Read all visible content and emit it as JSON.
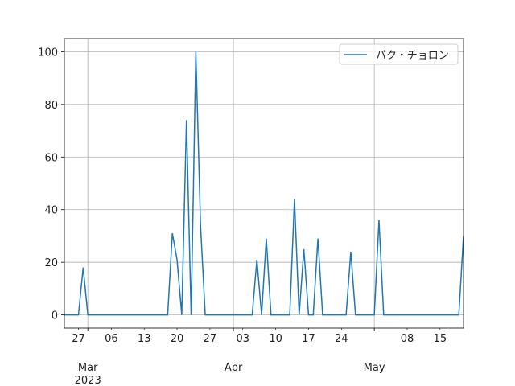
{
  "chart_data": {
    "type": "line",
    "legend": "upper right",
    "grid": true,
    "x": [
      "2023-02-24",
      "2023-02-25",
      "2023-02-26",
      "2023-02-27",
      "2023-02-28",
      "2023-03-01",
      "2023-03-02",
      "2023-03-03",
      "2023-03-04",
      "2023-03-05",
      "2023-03-06",
      "2023-03-07",
      "2023-03-08",
      "2023-03-09",
      "2023-03-10",
      "2023-03-11",
      "2023-03-12",
      "2023-03-13",
      "2023-03-14",
      "2023-03-15",
      "2023-03-16",
      "2023-03-17",
      "2023-03-18",
      "2023-03-19",
      "2023-03-20",
      "2023-03-21",
      "2023-03-22",
      "2023-03-23",
      "2023-03-24",
      "2023-03-25",
      "2023-03-26",
      "2023-03-27",
      "2023-03-28",
      "2023-03-29",
      "2023-03-30",
      "2023-03-31",
      "2023-04-01",
      "2023-04-02",
      "2023-04-03",
      "2023-04-04",
      "2023-04-05",
      "2023-04-06",
      "2023-04-07",
      "2023-04-08",
      "2023-04-09",
      "2023-04-10",
      "2023-04-11",
      "2023-04-12",
      "2023-04-13",
      "2023-04-14",
      "2023-04-15",
      "2023-04-16",
      "2023-04-17",
      "2023-04-18",
      "2023-04-19",
      "2023-04-20",
      "2023-04-21",
      "2023-04-22",
      "2023-04-23",
      "2023-04-24",
      "2023-04-25",
      "2023-04-26",
      "2023-04-27",
      "2023-04-28",
      "2023-04-29",
      "2023-04-30",
      "2023-05-01",
      "2023-05-02",
      "2023-05-03",
      "2023-05-04",
      "2023-05-05",
      "2023-05-06",
      "2023-05-07",
      "2023-05-08",
      "2023-05-09",
      "2023-05-10",
      "2023-05-11",
      "2023-05-12",
      "2023-05-13",
      "2023-05-14",
      "2023-05-15",
      "2023-05-16",
      "2023-05-17",
      "2023-05-18",
      "2023-05-19",
      "2023-05-20"
    ],
    "series": [
      {
        "name": "パク・チョロン",
        "color": "#1f77b4",
        "values": [
          0,
          0,
          0,
          0,
          18,
          0,
          0,
          0,
          0,
          0,
          0,
          0,
          0,
          0,
          0,
          0,
          0,
          0,
          0,
          0,
          0,
          0,
          0,
          31,
          21,
          0,
          74,
          0,
          100,
          34,
          0,
          0,
          0,
          0,
          0,
          0,
          0,
          0,
          0,
          0,
          0,
          21,
          0,
          29,
          0,
          0,
          0,
          0,
          0,
          44,
          0,
          25,
          0,
          0,
          29,
          0,
          0,
          0,
          0,
          0,
          0,
          24,
          0,
          0,
          0,
          0,
          0,
          36,
          0,
          0,
          0,
          0,
          0,
          0,
          0,
          0,
          0,
          0,
          0,
          0,
          0,
          0,
          0,
          0,
          0,
          30
        ]
      }
    ],
    "xlim": [
      "2023-02-24",
      "2023-05-20"
    ],
    "xticks": [
      {
        "value": "2023-03-01",
        "label": "Mar\n2023"
      },
      {
        "value": "2023-04-01",
        "label": "Apr"
      },
      {
        "value": "2023-05-01",
        "label": "May"
      }
    ],
    "xticks_minor": [
      {
        "value": "2023-02-27",
        "label": "27"
      },
      {
        "value": "2023-03-06",
        "label": "06"
      },
      {
        "value": "2023-03-13",
        "label": "13"
      },
      {
        "value": "2023-03-20",
        "label": "20"
      },
      {
        "value": "2023-03-27",
        "label": "27"
      },
      {
        "value": "2023-04-03",
        "label": "03"
      },
      {
        "value": "2023-04-10",
        "label": "10"
      },
      {
        "value": "2023-04-17",
        "label": "17"
      },
      {
        "value": "2023-04-24",
        "label": "24"
      },
      {
        "value": "2023-05-08",
        "label": "08"
      },
      {
        "value": "2023-05-15",
        "label": "15"
      }
    ],
    "ylim": [
      -5,
      105
    ],
    "yticks": [
      0,
      20,
      40,
      60,
      80,
      100
    ]
  }
}
